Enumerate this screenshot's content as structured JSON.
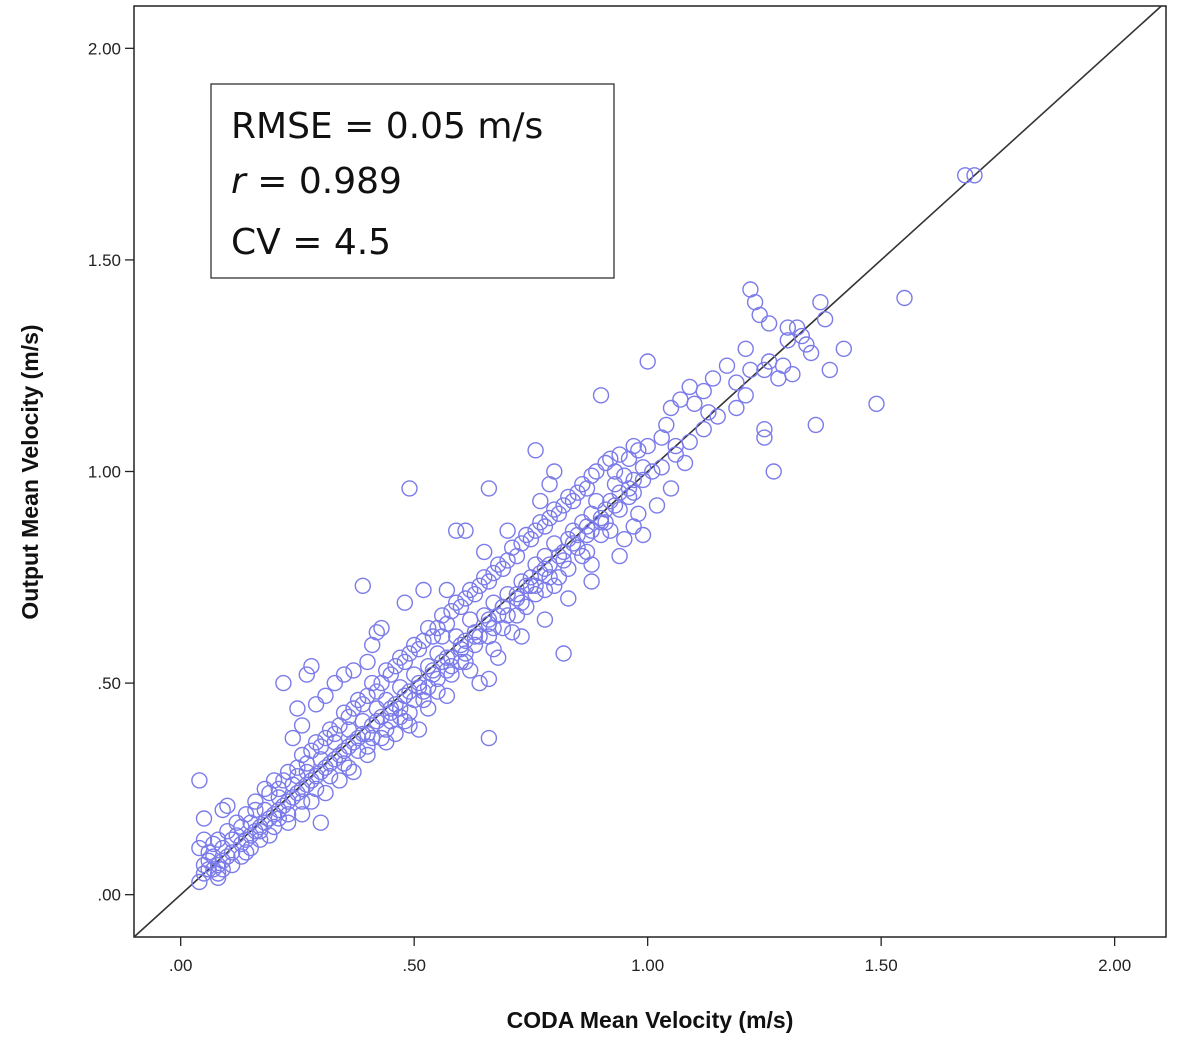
{
  "chart_data": {
    "type": "scatter",
    "title": "",
    "xlabel": "CODA Mean Velocity (m/s)",
    "ylabel": "Output Mean Velocity (m/s)",
    "xlim": [
      -0.1,
      2.11
    ],
    "ylim": [
      -0.1,
      2.1
    ],
    "xticks": [
      {
        "value": 0.0,
        "label": ".00"
      },
      {
        "value": 0.5,
        "label": ".50"
      },
      {
        "value": 1.0,
        "label": "1.00"
      },
      {
        "value": 1.5,
        "label": "1.50"
      },
      {
        "value": 2.0,
        "label": "2.00"
      }
    ],
    "yticks": [
      {
        "value": 0.0,
        "label": ".00"
      },
      {
        "value": 0.5,
        "label": ".50"
      },
      {
        "value": 1.0,
        "label": "1.00"
      },
      {
        "value": 1.5,
        "label": "1.50"
      },
      {
        "value": 2.0,
        "label": "2.00"
      }
    ],
    "grid": false,
    "marker_color": "#7b7bea",
    "line_color": "#333333",
    "reference_line": {
      "slope": 1,
      "intercept": 0
    },
    "annotation": {
      "lines": [
        {
          "prefix": "",
          "italic": "",
          "text": "RMSE = 0.05 m/s"
        },
        {
          "prefix": "",
          "italic": "r",
          "text": " = 0.989"
        },
        {
          "prefix": "",
          "italic": "",
          "text": "CV = 4.5"
        }
      ]
    },
    "points": [
      [
        1.68,
        1.7
      ],
      [
        1.7,
        1.7
      ],
      [
        1.22,
        1.43
      ],
      [
        1.23,
        1.4
      ],
      [
        1.24,
        1.37
      ],
      [
        1.26,
        1.35
      ],
      [
        1.3,
        1.34
      ],
      [
        1.32,
        1.34
      ],
      [
        1.37,
        1.4
      ],
      [
        1.38,
        1.36
      ],
      [
        1.33,
        1.32
      ],
      [
        1.34,
        1.3
      ],
      [
        1.42,
        1.29
      ],
      [
        1.55,
        1.41
      ],
      [
        1.49,
        1.16
      ],
      [
        1.36,
        1.11
      ],
      [
        1.25,
        1.1
      ],
      [
        1.25,
        1.08
      ],
      [
        1.27,
        1.0
      ],
      [
        1.39,
        1.24
      ],
      [
        1.28,
        1.22
      ],
      [
        1.29,
        1.25
      ],
      [
        1.25,
        1.24
      ],
      [
        1.26,
        1.26
      ],
      [
        1.21,
        1.29
      ],
      [
        1.19,
        1.21
      ],
      [
        1.17,
        1.25
      ],
      [
        1.12,
        1.19
      ],
      [
        1.14,
        1.22
      ],
      [
        1.09,
        1.2
      ],
      [
        1.07,
        1.17
      ],
      [
        1.1,
        1.16
      ],
      [
        1.13,
        1.14
      ],
      [
        1.05,
        1.15
      ],
      [
        1.04,
        1.11
      ],
      [
        1.0,
        1.26
      ],
      [
        1.03,
        1.08
      ],
      [
        1.06,
        1.06
      ],
      [
        1.0,
        1.06
      ],
      [
        0.98,
        1.05
      ],
      [
        0.96,
        1.03
      ],
      [
        0.99,
        1.01
      ],
      [
        1.01,
        1.0
      ],
      [
        0.97,
        0.98
      ],
      [
        0.95,
        0.99
      ],
      [
        0.93,
        1.0
      ],
      [
        0.93,
        0.97
      ],
      [
        0.94,
        0.95
      ],
      [
        0.92,
        0.93
      ],
      [
        0.91,
        0.91
      ],
      [
        0.9,
        0.89
      ],
      [
        0.88,
        0.9
      ],
      [
        0.87,
        0.87
      ],
      [
        0.86,
        0.88
      ],
      [
        0.89,
        0.93
      ],
      [
        0.85,
        0.85
      ],
      [
        0.83,
        0.84
      ],
      [
        0.82,
        0.81
      ],
      [
        0.84,
        0.86
      ],
      [
        0.8,
        0.83
      ],
      [
        0.79,
        0.78
      ],
      [
        0.78,
        0.8
      ],
      [
        0.77,
        0.76
      ],
      [
        0.76,
        0.78
      ],
      [
        0.75,
        0.75
      ],
      [
        0.74,
        0.73
      ],
      [
        0.72,
        0.7
      ],
      [
        0.73,
        0.74
      ],
      [
        0.7,
        0.71
      ],
      [
        0.69,
        0.68
      ],
      [
        0.68,
        0.66
      ],
      [
        0.67,
        0.69
      ],
      [
        0.66,
        0.64
      ],
      [
        0.65,
        0.66
      ],
      [
        0.63,
        0.62
      ],
      [
        0.62,
        0.65
      ],
      [
        0.61,
        0.6
      ],
      [
        0.6,
        0.58
      ],
      [
        0.59,
        0.61
      ],
      [
        0.58,
        0.56
      ],
      [
        0.56,
        0.55
      ],
      [
        0.55,
        0.57
      ],
      [
        0.54,
        0.52
      ],
      [
        0.53,
        0.54
      ],
      [
        0.51,
        0.5
      ],
      [
        0.5,
        0.52
      ],
      [
        0.49,
        0.48
      ],
      [
        0.48,
        0.47
      ],
      [
        0.47,
        0.49
      ],
      [
        0.46,
        0.45
      ],
      [
        0.45,
        0.43
      ],
      [
        0.44,
        0.46
      ],
      [
        0.43,
        0.42
      ],
      [
        0.42,
        0.44
      ],
      [
        0.41,
        0.4
      ],
      [
        0.4,
        0.38
      ],
      [
        0.39,
        0.41
      ],
      [
        0.38,
        0.37
      ],
      [
        0.37,
        0.36
      ],
      [
        0.36,
        0.39
      ],
      [
        0.35,
        0.34
      ],
      [
        0.34,
        0.33
      ],
      [
        0.33,
        0.36
      ],
      [
        0.32,
        0.31
      ],
      [
        0.31,
        0.3
      ],
      [
        0.3,
        0.32
      ],
      [
        0.29,
        0.28
      ],
      [
        0.28,
        0.27
      ],
      [
        0.27,
        0.29
      ],
      [
        0.26,
        0.25
      ],
      [
        0.25,
        0.24
      ],
      [
        0.24,
        0.26
      ],
      [
        0.23,
        0.22
      ],
      [
        0.22,
        0.21
      ],
      [
        0.21,
        0.23
      ],
      [
        0.2,
        0.19
      ],
      [
        0.19,
        0.18
      ],
      [
        0.18,
        0.2
      ],
      [
        0.17,
        0.16
      ],
      [
        0.16,
        0.15
      ],
      [
        0.15,
        0.17
      ],
      [
        0.14,
        0.13
      ],
      [
        0.13,
        0.12
      ],
      [
        0.12,
        0.14
      ],
      [
        0.11,
        0.1
      ],
      [
        0.1,
        0.09
      ],
      [
        0.09,
        0.11
      ],
      [
        0.08,
        0.07
      ],
      [
        0.07,
        0.06
      ],
      [
        0.06,
        0.08
      ],
      [
        0.05,
        0.05
      ],
      [
        0.04,
        0.03
      ],
      [
        0.05,
        0.07
      ],
      [
        0.06,
        0.1
      ],
      [
        0.04,
        0.11
      ],
      [
        0.05,
        0.13
      ],
      [
        0.07,
        0.12
      ],
      [
        0.08,
        0.05
      ],
      [
        0.09,
        0.06
      ],
      [
        0.04,
        0.27
      ],
      [
        0.09,
        0.2
      ],
      [
        0.1,
        0.21
      ],
      [
        0.05,
        0.18
      ],
      [
        0.28,
        0.54
      ],
      [
        0.27,
        0.52
      ],
      [
        0.22,
        0.5
      ],
      [
        0.25,
        0.44
      ],
      [
        0.26,
        0.4
      ],
      [
        0.24,
        0.37
      ],
      [
        0.3,
        0.17
      ],
      [
        0.39,
        0.73
      ],
      [
        0.41,
        0.59
      ],
      [
        0.42,
        0.62
      ],
      [
        0.43,
        0.63
      ],
      [
        0.49,
        0.96
      ],
      [
        0.48,
        0.69
      ],
      [
        0.56,
        0.61
      ],
      [
        0.52,
        0.72
      ],
      [
        0.57,
        0.72
      ],
      [
        0.59,
        0.86
      ],
      [
        0.61,
        0.86
      ],
      [
        0.66,
        0.96
      ],
      [
        0.65,
        0.81
      ],
      [
        0.7,
        0.86
      ],
      [
        0.76,
        1.05
      ],
      [
        0.77,
        0.93
      ],
      [
        0.79,
        0.97
      ],
      [
        0.8,
        1.0
      ],
      [
        0.9,
        1.18
      ],
      [
        0.82,
        0.57
      ],
      [
        0.66,
        0.37
      ],
      [
        0.66,
        0.51
      ],
      [
        0.61,
        0.55
      ],
      [
        0.64,
        0.5
      ],
      [
        0.51,
        0.39
      ],
      [
        0.49,
        0.4
      ],
      [
        0.47,
        0.44
      ],
      [
        0.45,
        0.41
      ],
      [
        0.52,
        0.46
      ],
      [
        0.55,
        0.48
      ],
      [
        0.58,
        0.52
      ],
      [
        0.67,
        0.58
      ],
      [
        0.71,
        0.62
      ],
      [
        0.74,
        0.68
      ],
      [
        0.78,
        0.72
      ],
      [
        0.81,
        0.75
      ],
      [
        0.86,
        0.8
      ],
      [
        0.88,
        0.78
      ],
      [
        0.92,
        0.86
      ],
      [
        0.96,
        0.94
      ],
      [
        0.98,
        0.9
      ],
      [
        1.02,
        0.92
      ],
      [
        1.05,
        0.96
      ],
      [
        1.08,
        1.02
      ],
      [
        0.97,
        0.87
      ],
      [
        0.95,
        0.84
      ],
      [
        0.9,
        0.85
      ],
      [
        0.87,
        0.81
      ],
      [
        0.83,
        0.77
      ],
      [
        0.8,
        0.73
      ],
      [
        0.76,
        0.71
      ],
      [
        0.72,
        0.66
      ],
      [
        0.69,
        0.63
      ],
      [
        0.66,
        0.61
      ],
      [
        0.63,
        0.59
      ],
      [
        0.6,
        0.55
      ],
      [
        0.57,
        0.53
      ],
      [
        0.53,
        0.49
      ],
      [
        0.5,
        0.46
      ],
      [
        0.47,
        0.42
      ],
      [
        0.44,
        0.39
      ],
      [
        0.41,
        0.37
      ],
      [
        0.38,
        0.34
      ],
      [
        0.35,
        0.31
      ],
      [
        0.32,
        0.28
      ],
      [
        0.29,
        0.25
      ],
      [
        0.26,
        0.22
      ],
      [
        0.23,
        0.19
      ],
      [
        0.2,
        0.16
      ],
      [
        0.17,
        0.13
      ],
      [
        0.14,
        0.1
      ],
      [
        0.11,
        0.07
      ],
      [
        0.08,
        0.04
      ],
      [
        0.13,
        0.16
      ],
      [
        0.16,
        0.2
      ],
      [
        0.19,
        0.24
      ],
      [
        0.22,
        0.27
      ],
      [
        0.25,
        0.3
      ],
      [
        0.28,
        0.34
      ],
      [
        0.31,
        0.37
      ],
      [
        0.34,
        0.4
      ],
      [
        0.37,
        0.44
      ],
      [
        0.4,
        0.47
      ],
      [
        0.43,
        0.5
      ],
      [
        0.46,
        0.54
      ],
      [
        0.49,
        0.57
      ],
      [
        0.52,
        0.6
      ],
      [
        0.55,
        0.63
      ],
      [
        0.58,
        0.67
      ],
      [
        0.61,
        0.7
      ],
      [
        0.64,
        0.73
      ],
      [
        0.67,
        0.76
      ],
      [
        0.7,
        0.79
      ],
      [
        0.73,
        0.83
      ],
      [
        0.76,
        0.86
      ],
      [
        0.79,
        0.89
      ],
      [
        0.82,
        0.92
      ],
      [
        0.85,
        0.95
      ],
      [
        0.88,
        0.99
      ],
      [
        0.91,
        1.02
      ],
      [
        0.94,
        1.04
      ],
      [
        0.97,
        1.06
      ],
      [
        0.25,
        0.28
      ],
      [
        0.27,
        0.31
      ],
      [
        0.3,
        0.35
      ],
      [
        0.33,
        0.38
      ],
      [
        0.36,
        0.42
      ],
      [
        0.39,
        0.45
      ],
      [
        0.42,
        0.48
      ],
      [
        0.45,
        0.52
      ],
      [
        0.48,
        0.55
      ],
      [
        0.51,
        0.58
      ],
      [
        0.54,
        0.61
      ],
      [
        0.57,
        0.64
      ],
      [
        0.6,
        0.68
      ],
      [
        0.63,
        0.71
      ],
      [
        0.66,
        0.74
      ],
      [
        0.69,
        0.77
      ],
      [
        0.72,
        0.8
      ],
      [
        0.75,
        0.84
      ],
      [
        0.78,
        0.87
      ],
      [
        0.81,
        0.9
      ],
      [
        0.84,
        0.93
      ],
      [
        0.87,
        0.96
      ],
      [
        0.15,
        0.14
      ],
      [
        0.18,
        0.17
      ],
      [
        0.21,
        0.2
      ],
      [
        0.24,
        0.23
      ],
      [
        0.27,
        0.26
      ],
      [
        0.3,
        0.29
      ],
      [
        0.33,
        0.32
      ],
      [
        0.36,
        0.35
      ],
      [
        0.39,
        0.38
      ],
      [
        0.42,
        0.41
      ],
      [
        0.45,
        0.44
      ],
      [
        0.48,
        0.47
      ],
      [
        0.51,
        0.49
      ],
      [
        0.54,
        0.53
      ],
      [
        0.57,
        0.56
      ],
      [
        0.6,
        0.59
      ],
      [
        0.63,
        0.61
      ],
      [
        0.66,
        0.65
      ],
      [
        0.69,
        0.68
      ],
      [
        0.72,
        0.71
      ],
      [
        0.75,
        0.73
      ],
      [
        0.78,
        0.77
      ],
      [
        0.81,
        0.8
      ],
      [
        0.84,
        0.83
      ],
      [
        0.87,
        0.85
      ],
      [
        0.9,
        0.88
      ],
      [
        0.93,
        0.92
      ],
      [
        0.96,
        0.96
      ],
      [
        0.99,
        0.98
      ],
      [
        0.35,
        0.52
      ],
      [
        0.33,
        0.5
      ],
      [
        0.31,
        0.47
      ],
      [
        0.29,
        0.45
      ],
      [
        0.37,
        0.53
      ],
      [
        0.4,
        0.55
      ],
      [
        0.36,
        0.3
      ],
      [
        0.4,
        0.33
      ],
      [
        0.44,
        0.36
      ],
      [
        0.48,
        0.41
      ],
      [
        0.53,
        0.44
      ],
      [
        0.57,
        0.47
      ],
      [
        0.62,
        0.53
      ],
      [
        0.68,
        0.56
      ],
      [
        0.73,
        0.61
      ],
      [
        0.78,
        0.65
      ],
      [
        0.83,
        0.7
      ],
      [
        0.88,
        0.74
      ],
      [
        0.94,
        0.8
      ],
      [
        0.99,
        0.85
      ],
      [
        0.2,
        0.27
      ],
      [
        0.18,
        0.25
      ],
      [
        0.16,
        0.22
      ],
      [
        0.14,
        0.19
      ],
      [
        0.12,
        0.17
      ],
      [
        0.1,
        0.15
      ],
      [
        0.08,
        0.13
      ],
      [
        0.06,
        0.06
      ],
      [
        0.07,
        0.09
      ],
      [
        0.09,
        0.08
      ],
      [
        0.11,
        0.13
      ],
      [
        0.13,
        0.09
      ],
      [
        0.15,
        0.11
      ],
      [
        0.17,
        0.15
      ],
      [
        0.19,
        0.14
      ],
      [
        0.21,
        0.18
      ],
      [
        0.23,
        0.17
      ],
      [
        0.26,
        0.19
      ],
      [
        0.28,
        0.22
      ],
      [
        0.31,
        0.24
      ],
      [
        0.34,
        0.27
      ],
      [
        0.37,
        0.29
      ],
      [
        0.4,
        0.35
      ],
      [
        0.43,
        0.37
      ],
      [
        0.46,
        0.38
      ],
      [
        0.49,
        0.43
      ],
      [
        0.52,
        0.48
      ],
      [
        0.55,
        0.51
      ],
      [
        0.58,
        0.54
      ],
      [
        0.61,
        0.57
      ],
      [
        0.64,
        0.61
      ],
      [
        0.67,
        0.63
      ],
      [
        0.7,
        0.66
      ],
      [
        0.73,
        0.69
      ],
      [
        0.76,
        0.73
      ],
      [
        0.79,
        0.75
      ],
      [
        0.82,
        0.79
      ],
      [
        0.85,
        0.82
      ],
      [
        0.88,
        0.86
      ],
      [
        0.91,
        0.88
      ],
      [
        0.94,
        0.91
      ],
      [
        0.97,
        0.95
      ],
      [
        1.03,
        1.01
      ],
      [
        1.06,
        1.04
      ],
      [
        1.09,
        1.07
      ],
      [
        1.12,
        1.1
      ],
      [
        1.15,
        1.13
      ],
      [
        0.21,
        0.25
      ],
      [
        0.23,
        0.29
      ],
      [
        0.26,
        0.33
      ],
      [
        0.29,
        0.36
      ],
      [
        0.32,
        0.39
      ],
      [
        0.35,
        0.43
      ],
      [
        0.38,
        0.46
      ],
      [
        0.41,
        0.5
      ],
      [
        0.44,
        0.53
      ],
      [
        0.47,
        0.56
      ],
      [
        0.5,
        0.59
      ],
      [
        0.53,
        0.63
      ],
      [
        0.56,
        0.66
      ],
      [
        0.59,
        0.69
      ],
      [
        0.62,
        0.72
      ],
      [
        0.65,
        0.75
      ],
      [
        0.68,
        0.78
      ],
      [
        0.71,
        0.82
      ],
      [
        0.74,
        0.85
      ],
      [
        0.77,
        0.88
      ],
      [
        0.8,
        0.91
      ],
      [
        0.83,
        0.94
      ],
      [
        0.86,
        0.97
      ],
      [
        0.89,
        1.0
      ],
      [
        0.92,
        1.03
      ],
      [
        1.19,
        1.15
      ],
      [
        1.21,
        1.18
      ],
      [
        1.22,
        1.24
      ],
      [
        1.3,
        1.31
      ],
      [
        1.31,
        1.23
      ],
      [
        1.35,
        1.28
      ]
    ]
  }
}
